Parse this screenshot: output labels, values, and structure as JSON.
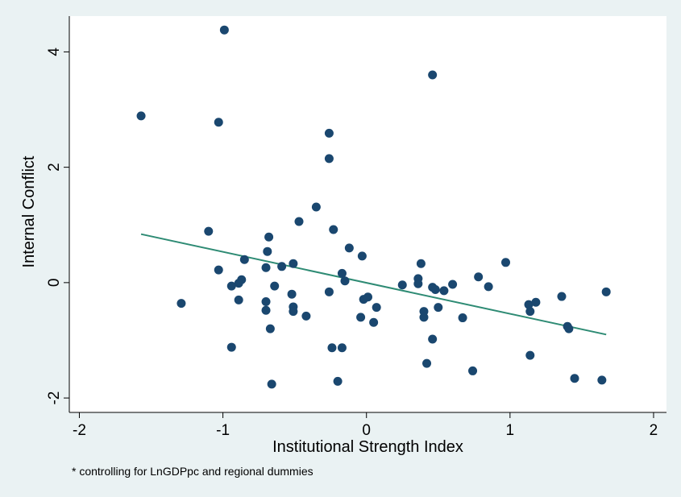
{
  "chart_data": {
    "type": "scatter",
    "xlabel": "Institutional Strength Index",
    "ylabel": "Internal Conflict",
    "note": "* controlling for LnGDPpc and regional dummies",
    "xlim": [
      -2.07,
      2.09
    ],
    "ylim": [
      -2.25,
      4.62
    ],
    "x_ticks": [
      -2,
      -1,
      0,
      1,
      2
    ],
    "y_ticks": [
      -2,
      0,
      2,
      4
    ],
    "x_tick_labels": [
      "-2",
      "-1",
      "0",
      "1",
      "2"
    ],
    "y_tick_labels": [
      "-2",
      "0",
      "2",
      "4"
    ],
    "grid": false,
    "colors": {
      "background": "#eaf2f3",
      "plot_area": "#ffffff",
      "marker": "#1a476f",
      "fit_line": "#2e8b74",
      "axis": "#000000"
    },
    "points": [
      {
        "x": -1.57,
        "y": 2.89
      },
      {
        "x": -0.99,
        "y": 4.38
      },
      {
        "x": 0.46,
        "y": 3.6
      },
      {
        "x": -1.03,
        "y": 2.78
      },
      {
        "x": -0.26,
        "y": 2.59
      },
      {
        "x": -0.26,
        "y": 2.15
      },
      {
        "x": -0.35,
        "y": 1.31
      },
      {
        "x": -0.47,
        "y": 1.06
      },
      {
        "x": -1.1,
        "y": 0.89
      },
      {
        "x": -0.23,
        "y": 0.92
      },
      {
        "x": -0.68,
        "y": 0.79
      },
      {
        "x": -0.69,
        "y": 0.54
      },
      {
        "x": -0.85,
        "y": 0.4
      },
      {
        "x": -0.12,
        "y": 0.6
      },
      {
        "x": -0.03,
        "y": 0.46
      },
      {
        "x": -0.59,
        "y": 0.28
      },
      {
        "x": -0.51,
        "y": 0.33
      },
      {
        "x": -0.7,
        "y": 0.26
      },
      {
        "x": -1.03,
        "y": 0.22
      },
      {
        "x": -0.17,
        "y": 0.16
      },
      {
        "x": -0.15,
        "y": 0.03
      },
      {
        "x": -0.87,
        "y": 0.05
      },
      {
        "x": -0.89,
        "y": -0.01
      },
      {
        "x": -0.94,
        "y": -0.06
      },
      {
        "x": -0.64,
        "y": -0.06
      },
      {
        "x": 0.38,
        "y": 0.33
      },
      {
        "x": 0.36,
        "y": 0.07
      },
      {
        "x": 0.36,
        "y": -0.02
      },
      {
        "x": 0.25,
        "y": -0.04
      },
      {
        "x": 0.46,
        "y": -0.08
      },
      {
        "x": 0.48,
        "y": -0.12
      },
      {
        "x": 0.54,
        "y": -0.14
      },
      {
        "x": 0.6,
        "y": -0.03
      },
      {
        "x": 0.78,
        "y": 0.1
      },
      {
        "x": 0.85,
        "y": -0.07
      },
      {
        "x": 0.97,
        "y": 0.35
      },
      {
        "x": -1.29,
        "y": -0.36
      },
      {
        "x": -0.89,
        "y": -0.3
      },
      {
        "x": -0.7,
        "y": -0.33
      },
      {
        "x": -0.7,
        "y": -0.48
      },
      {
        "x": -0.52,
        "y": -0.2
      },
      {
        "x": -0.51,
        "y": -0.42
      },
      {
        "x": -0.51,
        "y": -0.5
      },
      {
        "x": -0.42,
        "y": -0.58
      },
      {
        "x": -0.26,
        "y": -0.16
      },
      {
        "x": -0.02,
        "y": -0.29
      },
      {
        "x": 0.01,
        "y": -0.25
      },
      {
        "x": 0.07,
        "y": -0.43
      },
      {
        "x": -0.04,
        "y": -0.6
      },
      {
        "x": 0.05,
        "y": -0.69
      },
      {
        "x": 0.4,
        "y": -0.5
      },
      {
        "x": 0.4,
        "y": -0.6
      },
      {
        "x": 0.5,
        "y": -0.43
      },
      {
        "x": 0.67,
        "y": -0.61
      },
      {
        "x": -0.67,
        "y": -0.8
      },
      {
        "x": -0.94,
        "y": -1.12
      },
      {
        "x": -0.24,
        "y": -1.13
      },
      {
        "x": -0.17,
        "y": -1.13
      },
      {
        "x": 0.46,
        "y": -0.98
      },
      {
        "x": 0.42,
        "y": -1.4
      },
      {
        "x": 0.74,
        "y": -1.53
      },
      {
        "x": -0.2,
        "y": -1.71
      },
      {
        "x": -0.66,
        "y": -1.76
      },
      {
        "x": 1.13,
        "y": -0.38
      },
      {
        "x": 1.14,
        "y": -0.5
      },
      {
        "x": 1.18,
        "y": -0.34
      },
      {
        "x": 1.36,
        "y": -0.24
      },
      {
        "x": 1.4,
        "y": -0.76
      },
      {
        "x": 1.41,
        "y": -0.8
      },
      {
        "x": 1.14,
        "y": -1.26
      },
      {
        "x": 1.45,
        "y": -1.66
      },
      {
        "x": 1.64,
        "y": -1.69
      },
      {
        "x": 1.67,
        "y": -0.16
      }
    ],
    "fit_line": {
      "x": [
        -1.57,
        1.67
      ],
      "y": [
        0.84,
        -0.9
      ]
    }
  }
}
